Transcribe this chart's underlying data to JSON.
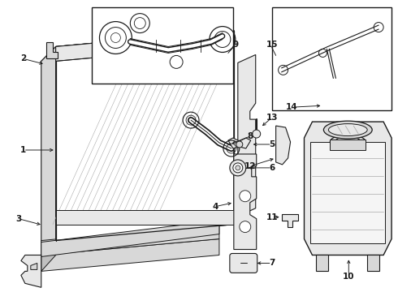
{
  "bg_color": "#ffffff",
  "line_color": "#1a1a1a",
  "gray1": "#f5f5f5",
  "gray2": "#e8e8e8",
  "gray3": "#d8d8d8",
  "gray4": "#c0c0c0",
  "gray5": "#aaaaaa",
  "figsize": [
    4.9,
    3.6
  ],
  "dpi": 100
}
